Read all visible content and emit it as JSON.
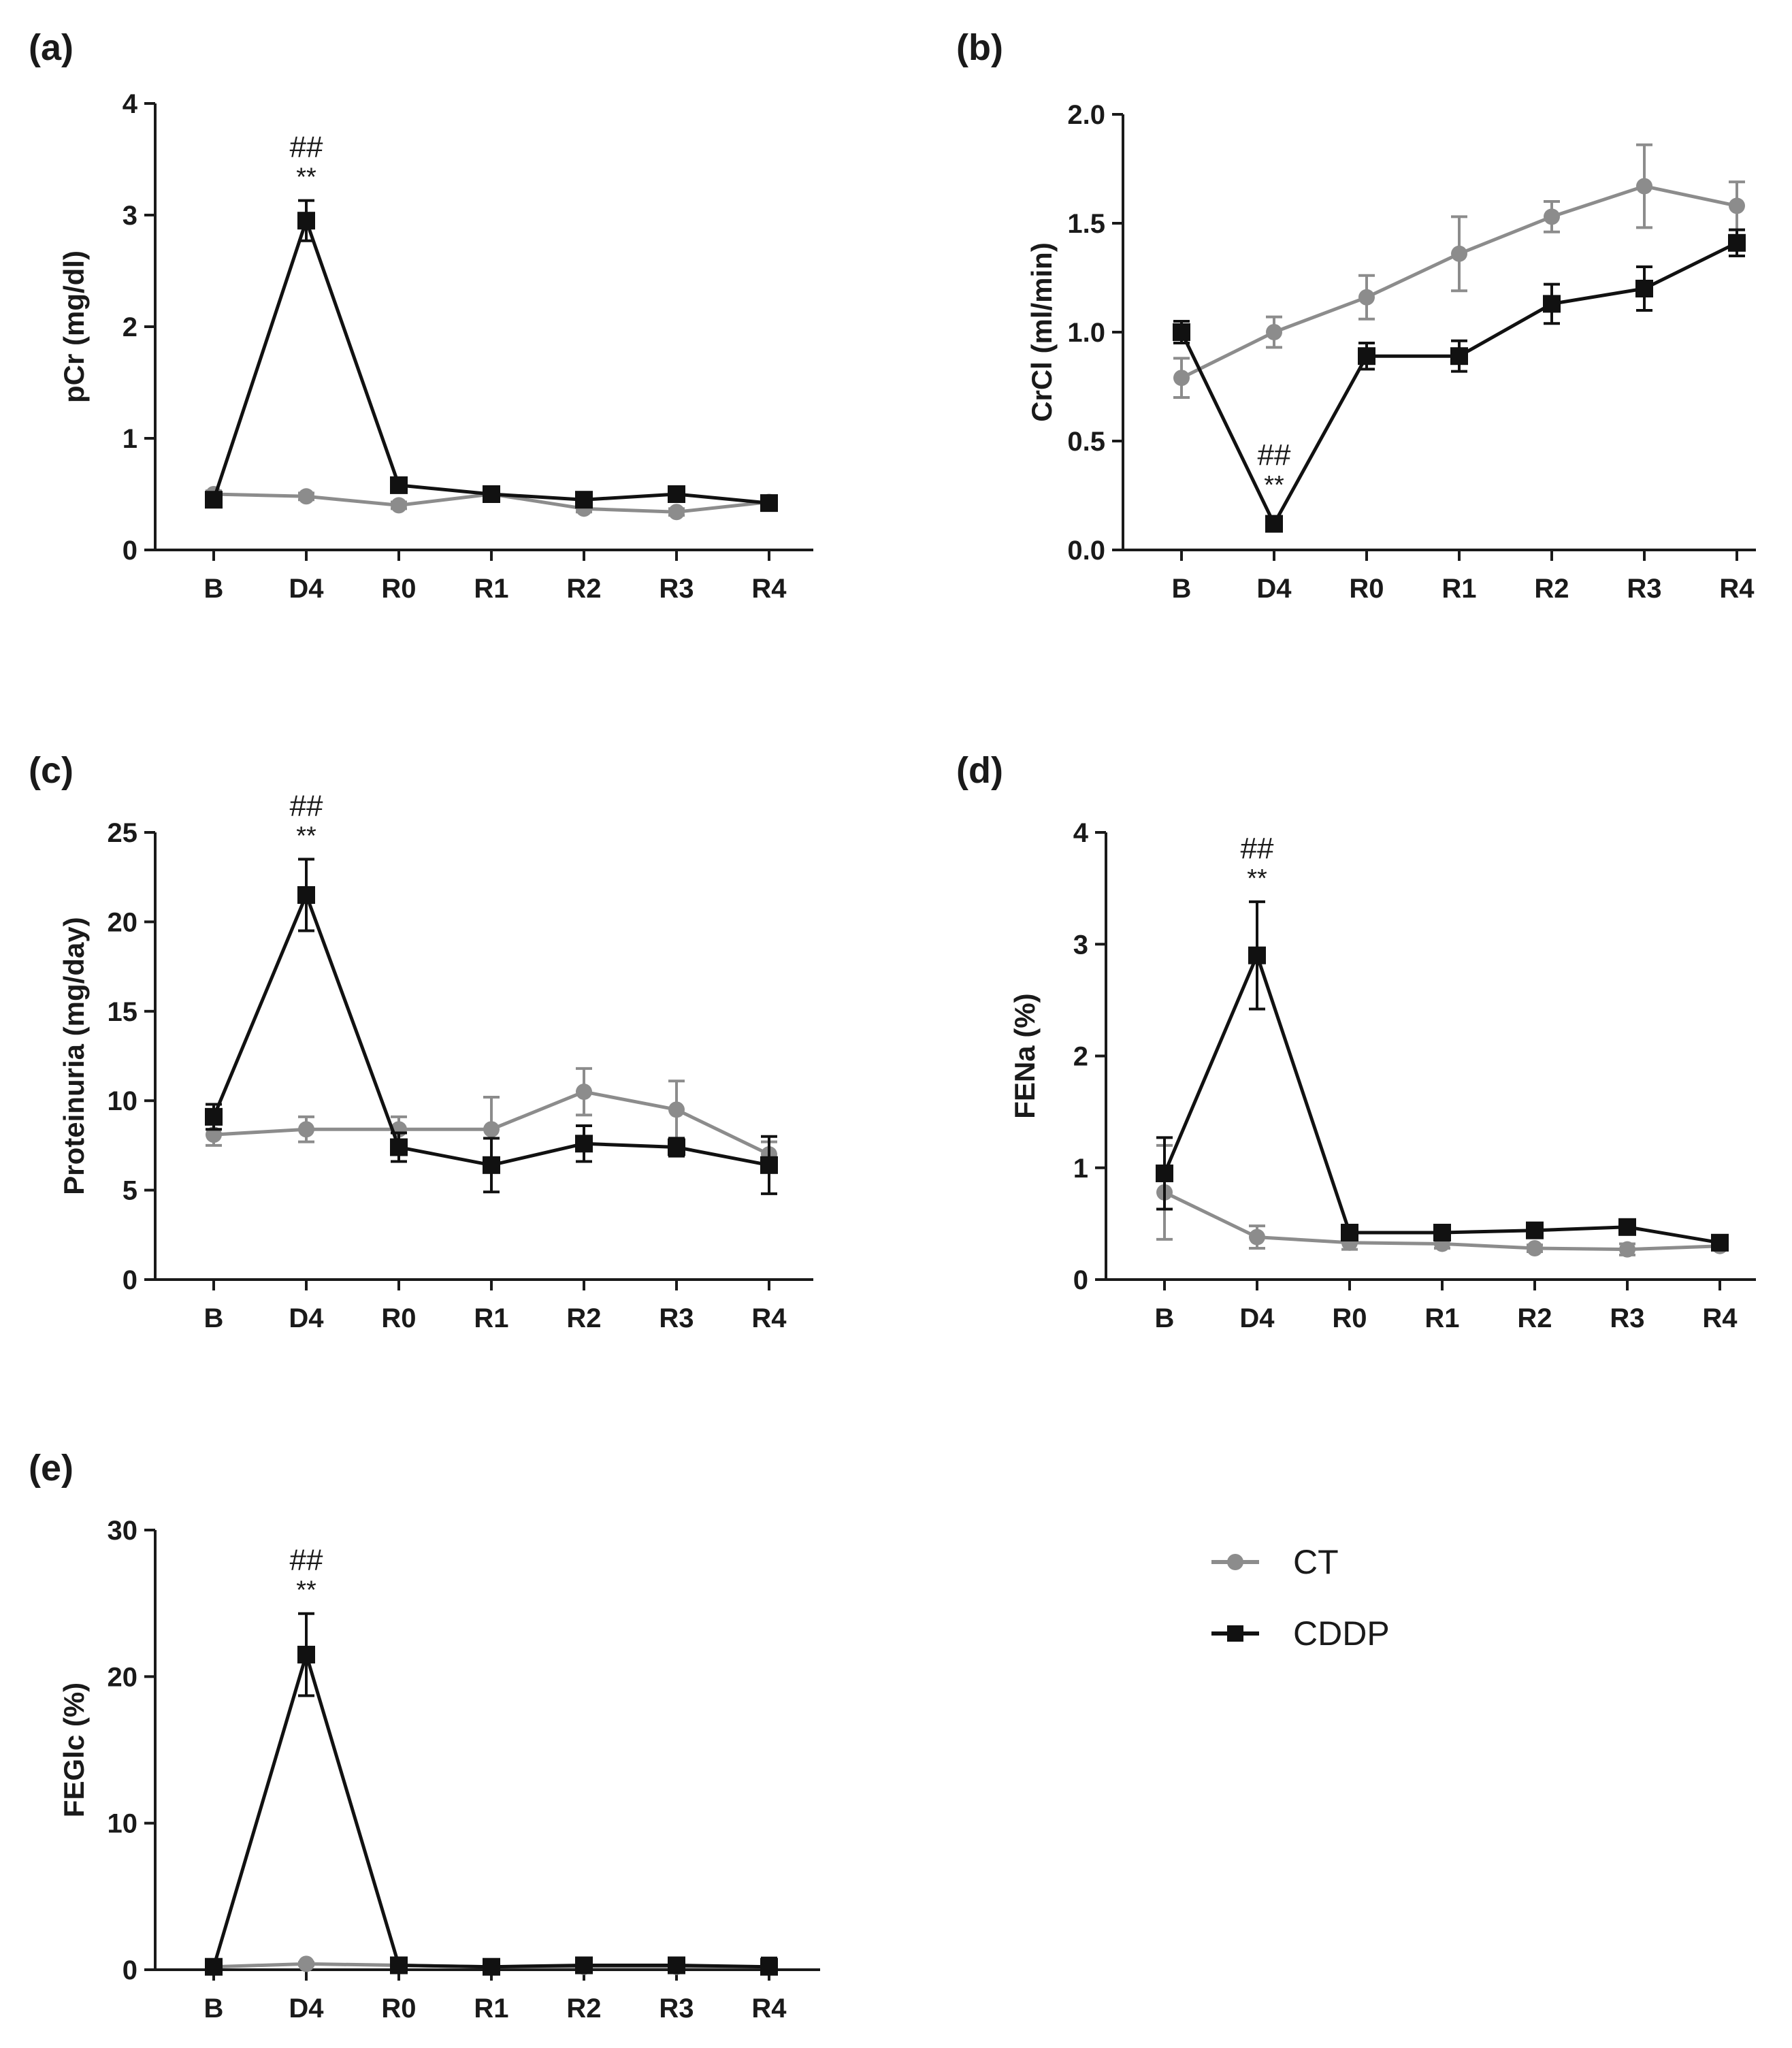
{
  "colors": {
    "CT": "#8c8c8c",
    "CDDP": "#111111",
    "axis": "#1a1a1a"
  },
  "legend": {
    "entries": [
      {
        "name": "CT",
        "color": "#8c8c8c",
        "marker": "circle"
      },
      {
        "name": "CDDP",
        "color": "#111111",
        "marker": "square"
      }
    ]
  },
  "chart_data": [
    {
      "id": "a",
      "panel_label": "(a)",
      "type": "line",
      "categories": [
        "B",
        "D4",
        "R0",
        "R1",
        "R2",
        "R3",
        "R4"
      ],
      "ylabel": "pCr (mg/dl)",
      "ylim": [
        0,
        4
      ],
      "yticks": [
        0,
        1,
        2,
        3,
        4
      ],
      "ytick_labels": [
        "0",
        "1",
        "2",
        "3",
        "4"
      ],
      "series": [
        {
          "name": "CT",
          "values": [
            0.5,
            0.48,
            0.4,
            0.5,
            0.37,
            0.34,
            0.43
          ],
          "errors": [
            0.03,
            0.03,
            0.03,
            0.03,
            0.03,
            0.03,
            0.03
          ]
        },
        {
          "name": "CDDP",
          "values": [
            0.45,
            2.95,
            0.58,
            0.5,
            0.45,
            0.5,
            0.42
          ],
          "errors": [
            0.05,
            0.18,
            0.04,
            0.03,
            0.04,
            0.04,
            0.03
          ]
        }
      ],
      "annotations": [
        {
          "category": "D4",
          "lines": [
            "##",
            "**"
          ]
        }
      ]
    },
    {
      "id": "b",
      "panel_label": "(b)",
      "type": "line",
      "categories": [
        "B",
        "D4",
        "R0",
        "R1",
        "R2",
        "R3",
        "R4"
      ],
      "ylabel": "CrCl (ml/min)",
      "ylim": [
        0,
        2
      ],
      "yticks": [
        0,
        0.5,
        1,
        1.5,
        2
      ],
      "ytick_labels": [
        "0.0",
        "0.5",
        "1.0",
        "1.5",
        "2.0"
      ],
      "series": [
        {
          "name": "CT",
          "values": [
            0.79,
            1.0,
            1.16,
            1.36,
            1.53,
            1.67,
            1.58
          ],
          "errors": [
            0.09,
            0.07,
            0.1,
            0.17,
            0.07,
            0.19,
            0.11
          ]
        },
        {
          "name": "CDDP",
          "values": [
            1.0,
            0.12,
            0.89,
            0.89,
            1.13,
            1.2,
            1.41
          ],
          "errors": [
            0.05,
            0.02,
            0.06,
            0.07,
            0.09,
            0.1,
            0.06
          ]
        }
      ],
      "annotations": [
        {
          "category": "D4",
          "lines": [
            "##",
            "**"
          ]
        }
      ]
    },
    {
      "id": "c",
      "panel_label": "(c)",
      "type": "line",
      "categories": [
        "B",
        "D4",
        "R0",
        "R1",
        "R2",
        "R3",
        "R4"
      ],
      "ylabel": "Proteinuria (mg/day)",
      "ylim": [
        0,
        25
      ],
      "yticks": [
        0,
        5,
        10,
        15,
        20,
        25
      ],
      "ytick_labels": [
        "0",
        "5",
        "10",
        "15",
        "20",
        "25"
      ],
      "series": [
        {
          "name": "CT",
          "values": [
            8.1,
            8.4,
            8.4,
            8.4,
            10.5,
            9.5,
            7.0
          ],
          "errors": [
            0.6,
            0.7,
            0.7,
            1.8,
            1.3,
            1.6,
            0.7
          ]
        },
        {
          "name": "CDDP",
          "values": [
            9.1,
            21.5,
            7.4,
            6.4,
            7.6,
            7.4,
            6.4
          ],
          "errors": [
            0.7,
            2.0,
            0.8,
            1.5,
            1.0,
            0.5,
            1.6
          ]
        }
      ],
      "annotations": [
        {
          "category": "D4",
          "lines": [
            "##",
            "**"
          ]
        }
      ]
    },
    {
      "id": "d",
      "panel_label": "(d)",
      "type": "line",
      "categories": [
        "B",
        "D4",
        "R0",
        "R1",
        "R2",
        "R3",
        "R4"
      ],
      "ylabel": "FENa (%)",
      "ylim": [
        0,
        4
      ],
      "yticks": [
        0,
        1,
        2,
        3,
        4
      ],
      "ytick_labels": [
        "0",
        "1",
        "2",
        "3",
        "4"
      ],
      "series": [
        {
          "name": "CT",
          "values": [
            0.78,
            0.38,
            0.33,
            0.32,
            0.28,
            0.27,
            0.3
          ],
          "errors": [
            0.42,
            0.1,
            0.06,
            0.04,
            0.03,
            0.05,
            0.03
          ]
        },
        {
          "name": "CDDP",
          "values": [
            0.95,
            2.9,
            0.42,
            0.42,
            0.44,
            0.47,
            0.33
          ],
          "errors": [
            0.32,
            0.48,
            0.05,
            0.05,
            0.05,
            0.05,
            0.04
          ]
        }
      ],
      "annotations": [
        {
          "category": "D4",
          "lines": [
            "##",
            "**"
          ]
        }
      ]
    },
    {
      "id": "e",
      "panel_label": "(e)",
      "type": "line",
      "categories": [
        "B",
        "D4",
        "R0",
        "R1",
        "R2",
        "R3",
        "R4"
      ],
      "ylabel": "FEGlc (%)",
      "ylim": [
        0,
        30
      ],
      "yticks": [
        0,
        10,
        20,
        30
      ],
      "ytick_labels": [
        "0",
        "10",
        "20",
        "30"
      ],
      "series": [
        {
          "name": "CT",
          "values": [
            0.2,
            0.4,
            0.3,
            0.2,
            0.2,
            0.2,
            0.2
          ],
          "errors": [
            0.1,
            0.1,
            0.1,
            0.1,
            0.1,
            0.1,
            0.1
          ]
        },
        {
          "name": "CDDP",
          "values": [
            0.2,
            21.5,
            0.3,
            0.2,
            0.3,
            0.3,
            0.2
          ],
          "errors": [
            0.1,
            2.8,
            0.1,
            0.1,
            0.1,
            0.1,
            0.6
          ]
        }
      ],
      "annotations": [
        {
          "category": "D4",
          "lines": [
            "##",
            "**"
          ]
        }
      ]
    }
  ]
}
